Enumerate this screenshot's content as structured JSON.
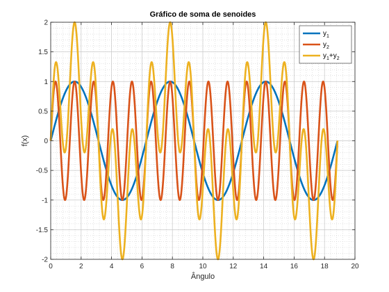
{
  "chart_data": {
    "type": "line",
    "title": "Gráfico de soma de senoides",
    "xlabel": "Ângulo",
    "ylabel": "f(x)",
    "xlim": [
      0,
      20
    ],
    "ylim": [
      -2,
      2
    ],
    "xticks": [
      0,
      2,
      4,
      6,
      8,
      10,
      12,
      14,
      16,
      18,
      20
    ],
    "yticks": [
      -2,
      -1.5,
      -1,
      -0.5,
      0,
      0.5,
      1,
      1.5,
      2
    ],
    "xtick_labels": [
      "0",
      "2",
      "4",
      "6",
      "8",
      "10",
      "12",
      "14",
      "16",
      "18",
      "20"
    ],
    "ytick_labels": [
      "-2",
      "-1.5",
      "-1",
      "-0.5",
      "0",
      "0.5",
      "1",
      "1.5",
      "2"
    ],
    "grid": true,
    "minor_grid": true,
    "legend_location": "top-right",
    "x_range": [
      0,
      18.85
    ],
    "series": [
      {
        "name": "y1",
        "label_base": "y",
        "label_sub": "1",
        "function": "sin(x)",
        "color": "#0072BD"
      },
      {
        "name": "y2",
        "label_base": "y",
        "label_sub": "2",
        "function": "sin(5x)",
        "color": "#D95319"
      },
      {
        "name": "y1+y2",
        "label_base": "y",
        "label_sub": "1",
        "label_plus": "+y",
        "label_sub2": "2",
        "function": "sin(x)+sin(5x)",
        "color": "#EDB120"
      }
    ]
  }
}
